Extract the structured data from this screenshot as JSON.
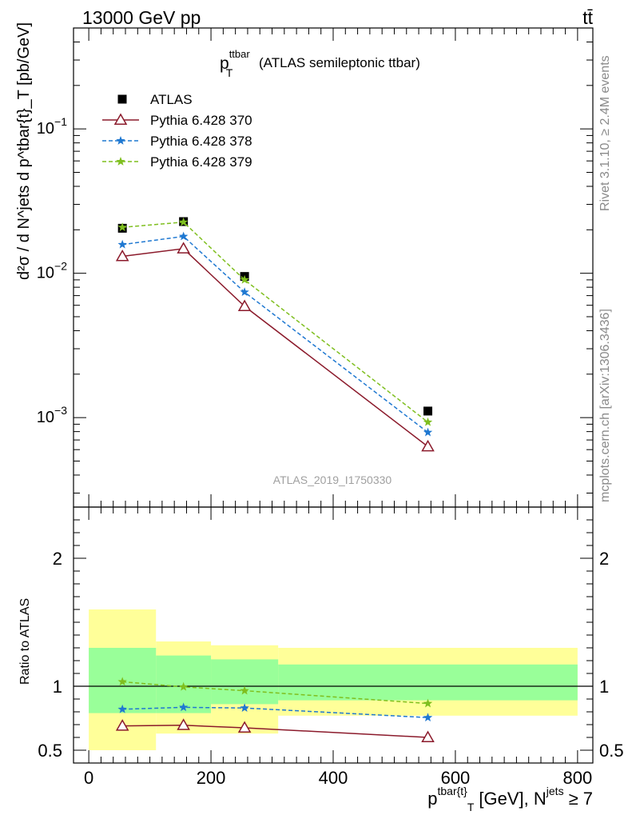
{
  "header": {
    "left": "13000 GeV pp",
    "right": "tt̄"
  },
  "side_labels": {
    "rivet": "Rivet 3.1.10, ≥ 2.4M events",
    "mcplots": "mcplots.cern.ch [arXiv:1306.3436]"
  },
  "chart_data": [
    {
      "type": "scatter",
      "panel": "main",
      "title_main": "p",
      "title_sub": "T",
      "title_sup": "ttbar",
      "title_rest": "(ATLAS semileptonic ttbar)",
      "watermark": "ATLAS_2019_I1750330",
      "ylabel": "d²σ / d N^jets d p^tbar{t}_T [pb/GeV]",
      "yscale": "log",
      "ylim": [
        0.00024,
        0.5
      ],
      "xlim": [
        -25,
        825
      ],
      "yticks": [
        {
          "value": 0.1,
          "mantissa": "10",
          "exp": "−1"
        },
        {
          "value": 0.01,
          "mantissa": "10",
          "exp": "−2"
        },
        {
          "value": 0.001,
          "mantissa": "10",
          "exp": "−3"
        }
      ],
      "legend_position": "top-left",
      "x": [
        55,
        155,
        255,
        555
      ],
      "series": [
        {
          "name": "ATLAS",
          "style": "marker-square",
          "color": "#000000",
          "values": [
            0.0205,
            0.0228,
            0.0095,
            0.00111
          ]
        },
        {
          "name": "Pythia 6.428 370",
          "style": "solid-triangle",
          "color": "#8b1a2b",
          "values": [
            0.0131,
            0.0148,
            0.0059,
            0.00063
          ]
        },
        {
          "name": "Pythia 6.428 378",
          "style": "dashed-star",
          "color": "#1f78d1",
          "values": [
            0.0158,
            0.018,
            0.0074,
            0.00079
          ]
        },
        {
          "name": "Pythia 6.428 379",
          "style": "dashed-star",
          "color": "#7fbf1f",
          "values": [
            0.0208,
            0.0226,
            0.009,
            0.00093
          ]
        }
      ]
    },
    {
      "type": "scatter",
      "panel": "ratio",
      "ylabel": "Ratio to ATLAS",
      "xlabel_main": "p",
      "xlabel_sup": "tbar{t}",
      "xlabel_sub": "T",
      "xlabel_rest": "[GeV], N",
      "xlabel_sup2": "jets",
      "xlabel_tail": "≥ 7",
      "ylim": [
        0.4,
        2.4
      ],
      "xlim": [
        -25,
        825
      ],
      "xticks": [
        0,
        200,
        400,
        600,
        800
      ],
      "yticks": [
        0.5,
        1,
        2
      ],
      "bands": [
        {
          "x0": 0,
          "x1": 110,
          "inner": [
            0.79,
            1.3
          ],
          "outer": [
            0.5,
            1.6
          ]
        },
        {
          "x0": 110,
          "x1": 200,
          "inner": [
            0.79,
            1.24
          ],
          "outer": [
            0.63,
            1.35
          ]
        },
        {
          "x0": 200,
          "x1": 310,
          "inner": [
            0.86,
            1.21
          ],
          "outer": [
            0.63,
            1.32
          ]
        },
        {
          "x0": 310,
          "x1": 800,
          "inner": [
            0.89,
            1.17
          ],
          "outer": [
            0.77,
            1.3
          ]
        }
      ],
      "x": [
        55,
        155,
        255,
        555
      ],
      "series": [
        {
          "name": "Pythia 6.428 370",
          "style": "solid-triangle",
          "color": "#8b1a2b",
          "values": [
            0.69,
            0.695,
            0.675,
            0.6
          ]
        },
        {
          "name": "Pythia 6.428 378",
          "style": "dashed-star",
          "color": "#1f78d1",
          "values": [
            0.82,
            0.835,
            0.83,
            0.755
          ]
        },
        {
          "name": "Pythia 6.428 379",
          "style": "dashed-star",
          "color": "#7fbf1f",
          "values": [
            1.035,
            0.995,
            0.965,
            0.865
          ]
        }
      ]
    }
  ]
}
